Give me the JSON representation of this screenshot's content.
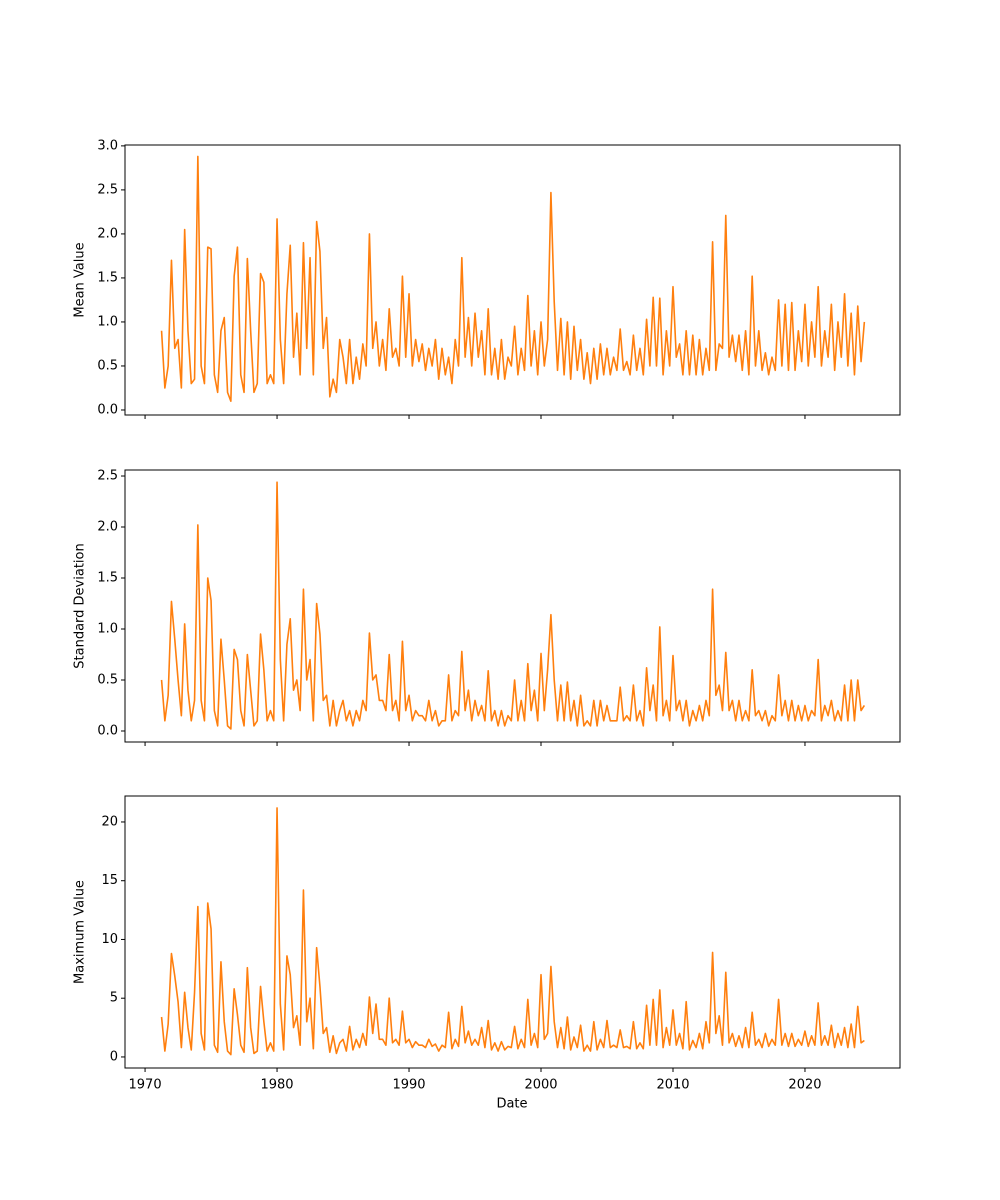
{
  "chart_data": {
    "type": "line",
    "xlabel": "Date",
    "color": "#ff7f0e",
    "xlim": [
      1968.48,
      2027.2
    ],
    "xticks": [
      1970,
      1980,
      1990,
      2000,
      2010,
      2020
    ],
    "x": [
      1971.25,
      1971.5,
      1971.75,
      1972,
      1972.25,
      1972.5,
      1972.75,
      1973,
      1973.25,
      1973.5,
      1973.75,
      1974,
      1974.25,
      1974.5,
      1974.75,
      1975,
      1975.25,
      1975.5,
      1975.75,
      1976,
      1976.25,
      1976.5,
      1976.75,
      1977,
      1977.25,
      1977.5,
      1977.75,
      1978,
      1978.25,
      1978.5,
      1978.75,
      1979,
      1979.25,
      1979.5,
      1979.75,
      1980,
      1980.25,
      1980.5,
      1980.75,
      1981,
      1981.25,
      1981.5,
      1981.75,
      1982,
      1982.25,
      1982.5,
      1982.75,
      1983,
      1983.25,
      1983.5,
      1983.75,
      1984,
      1984.25,
      1984.5,
      1984.75,
      1985,
      1985.25,
      1985.5,
      1985.75,
      1986,
      1986.25,
      1986.5,
      1986.75,
      1987,
      1987.25,
      1987.5,
      1987.75,
      1988,
      1988.25,
      1988.5,
      1988.75,
      1989,
      1989.25,
      1989.5,
      1989.75,
      1990,
      1990.25,
      1990.5,
      1990.75,
      1991,
      1991.25,
      1991.5,
      1991.75,
      1992,
      1992.25,
      1992.5,
      1992.75,
      1993,
      1993.25,
      1993.5,
      1993.75,
      1994,
      1994.25,
      1994.5,
      1994.75,
      1995,
      1995.25,
      1995.5,
      1995.75,
      1996,
      1996.25,
      1996.5,
      1996.75,
      1997,
      1997.25,
      1997.5,
      1997.75,
      1998,
      1998.25,
      1998.5,
      1998.75,
      1999,
      1999.25,
      1999.5,
      1999.75,
      2000,
      2000.25,
      2000.5,
      2000.75,
      2001,
      2001.25,
      2001.5,
      2001.75,
      2002,
      2002.25,
      2002.5,
      2002.75,
      2003,
      2003.25,
      2003.5,
      2003.75,
      2004,
      2004.25,
      2004.5,
      2004.75,
      2005,
      2005.25,
      2005.5,
      2005.75,
      2006,
      2006.25,
      2006.5,
      2006.75,
      2007,
      2007.25,
      2007.5,
      2007.75,
      2008,
      2008.25,
      2008.5,
      2008.75,
      2009,
      2009.25,
      2009.5,
      2009.75,
      2010,
      2010.25,
      2010.5,
      2010.75,
      2011,
      2011.25,
      2011.5,
      2011.75,
      2012,
      2012.25,
      2012.5,
      2012.75,
      2013,
      2013.25,
      2013.5,
      2013.75,
      2014,
      2014.25,
      2014.5,
      2014.75,
      2015,
      2015.25,
      2015.5,
      2015.75,
      2016,
      2016.25,
      2016.5,
      2016.75,
      2017,
      2017.25,
      2017.5,
      2017.75,
      2018,
      2018.25,
      2018.5,
      2018.75,
      2019,
      2019.25,
      2019.5,
      2019.75,
      2020,
      2020.25,
      2020.5,
      2020.75,
      2021,
      2021.25,
      2021.5,
      2021.75,
      2022,
      2022.25,
      2022.5,
      2022.75,
      2023,
      2023.25,
      2023.5,
      2023.75,
      2024,
      2024.25,
      2024.5
    ],
    "panels": [
      {
        "ylabel": "Mean Value",
        "ylim": [
          -0.057,
          3.01
        ],
        "yticks": [
          {
            "value": 0,
            "label": "0.0"
          },
          0.5,
          {
            "value": 1,
            "label": "1.0"
          },
          1.5,
          {
            "value": 2,
            "label": "2.0"
          },
          2.5,
          {
            "value": 3,
            "label": "3.0"
          }
        ],
        "values": [
          0.9,
          0.25,
          0.5,
          1.7,
          0.7,
          0.8,
          0.25,
          2.05,
          0.9,
          0.3,
          0.35,
          2.88,
          0.5,
          0.3,
          1.85,
          1.83,
          0.4,
          0.2,
          0.9,
          1.05,
          0.2,
          0.1,
          1.52,
          1.85,
          0.4,
          0.2,
          1.72,
          0.9,
          0.2,
          0.3,
          1.55,
          1.45,
          0.3,
          0.4,
          0.3,
          2.17,
          0.8,
          0.3,
          1.32,
          1.87,
          0.6,
          1.1,
          0.4,
          1.9,
          0.7,
          1.73,
          0.4,
          2.14,
          1.8,
          0.7,
          1.05,
          0.15,
          0.35,
          0.2,
          0.8,
          0.6,
          0.3,
          0.8,
          0.3,
          0.6,
          0.35,
          0.75,
          0.5,
          2.0,
          0.7,
          1.0,
          0.5,
          0.8,
          0.45,
          1.15,
          0.6,
          0.7,
          0.5,
          1.52,
          0.6,
          1.32,
          0.5,
          0.8,
          0.55,
          0.75,
          0.45,
          0.7,
          0.5,
          0.8,
          0.35,
          0.7,
          0.4,
          0.6,
          0.3,
          0.8,
          0.5,
          1.73,
          0.6,
          1.05,
          0.5,
          1.1,
          0.6,
          0.9,
          0.4,
          1.15,
          0.4,
          0.7,
          0.35,
          0.8,
          0.35,
          0.6,
          0.5,
          0.95,
          0.4,
          0.7,
          0.45,
          1.3,
          0.5,
          0.9,
          0.4,
          1.0,
          0.5,
          0.8,
          2.47,
          1.23,
          0.45,
          1.04,
          0.4,
          1.0,
          0.35,
          0.95,
          0.45,
          0.8,
          0.35,
          0.65,
          0.3,
          0.7,
          0.35,
          0.75,
          0.4,
          0.7,
          0.4,
          0.6,
          0.45,
          0.92,
          0.45,
          0.55,
          0.4,
          0.85,
          0.45,
          0.7,
          0.4,
          1.03,
          0.5,
          1.28,
          0.5,
          1.27,
          0.4,
          0.9,
          0.5,
          1.4,
          0.6,
          0.75,
          0.4,
          0.9,
          0.4,
          0.85,
          0.4,
          0.8,
          0.4,
          0.7,
          0.45,
          1.91,
          0.45,
          0.75,
          0.7,
          2.21,
          0.6,
          0.85,
          0.55,
          0.85,
          0.45,
          0.9,
          0.4,
          1.52,
          0.5,
          0.9,
          0.45,
          0.65,
          0.4,
          0.6,
          0.45,
          1.25,
          0.5,
          1.2,
          0.45,
          1.22,
          0.45,
          0.9,
          0.55,
          1.2,
          0.5,
          1.0,
          0.6,
          1.4,
          0.5,
          0.9,
          0.6,
          1.2,
          0.45,
          1.0,
          0.6,
          1.32,
          0.5,
          1.1,
          0.4,
          1.18,
          0.55,
          1.0
        ]
      },
      {
        "ylabel": "Standard Deviation",
        "ylim": [
          -0.108,
          2.559
        ],
        "yticks": [
          {
            "value": 0,
            "label": "0.0"
          },
          0.5,
          {
            "value": 1,
            "label": "1.0"
          },
          1.5,
          {
            "value": 2,
            "label": "2.0"
          },
          2.5
        ],
        "values": [
          0.5,
          0.1,
          0.35,
          1.27,
          0.9,
          0.5,
          0.15,
          1.05,
          0.4,
          0.1,
          0.3,
          2.02,
          0.3,
          0.1,
          1.5,
          1.28,
          0.2,
          0.05,
          0.9,
          0.5,
          0.05,
          0.02,
          0.8,
          0.7,
          0.2,
          0.05,
          0.75,
          0.4,
          0.05,
          0.1,
          0.95,
          0.6,
          0.1,
          0.2,
          0.1,
          2.44,
          0.7,
          0.1,
          0.85,
          1.1,
          0.4,
          0.5,
          0.2,
          1.39,
          0.5,
          0.7,
          0.1,
          1.25,
          0.95,
          0.3,
          0.35,
          0.05,
          0.3,
          0.05,
          0.2,
          0.3,
          0.1,
          0.2,
          0.05,
          0.2,
          0.1,
          0.3,
          0.2,
          0.96,
          0.5,
          0.55,
          0.3,
          0.3,
          0.2,
          0.75,
          0.2,
          0.3,
          0.1,
          0.88,
          0.2,
          0.35,
          0.1,
          0.2,
          0.15,
          0.15,
          0.1,
          0.3,
          0.1,
          0.2,
          0.05,
          0.1,
          0.1,
          0.55,
          0.1,
          0.2,
          0.15,
          0.78,
          0.2,
          0.4,
          0.1,
          0.3,
          0.15,
          0.25,
          0.1,
          0.59,
          0.1,
          0.2,
          0.05,
          0.2,
          0.05,
          0.15,
          0.1,
          0.5,
          0.1,
          0.3,
          0.1,
          0.66,
          0.2,
          0.4,
          0.1,
          0.76,
          0.2,
          0.6,
          1.14,
          0.5,
          0.1,
          0.45,
          0.1,
          0.48,
          0.1,
          0.3,
          0.05,
          0.35,
          0.05,
          0.1,
          0.05,
          0.3,
          0.05,
          0.3,
          0.1,
          0.25,
          0.1,
          0.1,
          0.1,
          0.43,
          0.1,
          0.15,
          0.1,
          0.45,
          0.1,
          0.2,
          0.05,
          0.62,
          0.2,
          0.45,
          0.1,
          1.02,
          0.15,
          0.3,
          0.1,
          0.74,
          0.2,
          0.3,
          0.1,
          0.3,
          0.05,
          0.2,
          0.1,
          0.25,
          0.1,
          0.3,
          0.15,
          1.39,
          0.35,
          0.45,
          0.2,
          0.77,
          0.2,
          0.3,
          0.1,
          0.3,
          0.1,
          0.2,
          0.1,
          0.6,
          0.15,
          0.2,
          0.1,
          0.2,
          0.05,
          0.15,
          0.1,
          0.55,
          0.15,
          0.3,
          0.1,
          0.3,
          0.1,
          0.25,
          0.1,
          0.25,
          0.1,
          0.2,
          0.15,
          0.7,
          0.1,
          0.25,
          0.15,
          0.3,
          0.1,
          0.2,
          0.1,
          0.45,
          0.1,
          0.5,
          0.1,
          0.5,
          0.2,
          0.25
        ]
      },
      {
        "ylabel": "Maximum Value",
        "ylim": [
          -0.94,
          22.21
        ],
        "yticks": [
          0,
          5,
          10,
          15,
          20
        ],
        "values": [
          3.4,
          0.5,
          2.8,
          8.8,
          6.9,
          4.7,
          0.8,
          5.5,
          2.5,
          0.6,
          5.5,
          12.8,
          2.0,
          0.6,
          13.1,
          10.9,
          1.0,
          0.4,
          8.1,
          3.0,
          0.5,
          0.2,
          5.8,
          3.6,
          1.0,
          0.4,
          7.6,
          2.5,
          0.3,
          0.5,
          6.0,
          3.0,
          0.5,
          1.2,
          0.5,
          21.2,
          4.5,
          0.6,
          8.6,
          7.0,
          2.5,
          3.5,
          1.0,
          14.2,
          3.0,
          5.0,
          0.7,
          9.3,
          6.0,
          2.0,
          2.5,
          0.4,
          1.8,
          0.3,
          1.2,
          1.5,
          0.5,
          2.6,
          0.6,
          1.5,
          0.8,
          2.0,
          1.0,
          5.1,
          2.0,
          4.5,
          1.5,
          1.5,
          1.0,
          5.0,
          1.2,
          1.5,
          1.0,
          3.9,
          1.2,
          1.5,
          0.8,
          1.3,
          1.0,
          1.0,
          0.8,
          1.5,
          0.9,
          1.1,
          0.5,
          1.0,
          0.8,
          3.8,
          0.7,
          1.5,
          0.9,
          4.3,
          1.2,
          2.2,
          1.0,
          1.5,
          1.0,
          2.5,
          0.8,
          3.1,
          0.6,
          1.2,
          0.5,
          1.3,
          0.6,
          0.9,
          0.8,
          2.6,
          0.7,
          1.5,
          0.8,
          4.9,
          1.0,
          2.0,
          0.8,
          7.0,
          1.5,
          2.0,
          7.7,
          3.0,
          0.8,
          2.5,
          0.7,
          3.4,
          0.6,
          1.7,
          0.8,
          2.7,
          0.5,
          1.0,
          0.5,
          3.0,
          0.6,
          1.5,
          0.8,
          3.1,
          0.8,
          1.0,
          0.8,
          2.3,
          0.8,
          0.9,
          0.7,
          3.0,
          0.7,
          1.2,
          0.7,
          4.4,
          1.0,
          4.9,
          1.0,
          5.7,
          0.8,
          2.5,
          1.0,
          4.0,
          1.0,
          2.0,
          0.7,
          4.7,
          0.6,
          1.4,
          0.8,
          2.0,
          0.7,
          3.0,
          1.2,
          8.9,
          2.0,
          3.5,
          1.0,
          7.2,
          1.2,
          2.0,
          0.9,
          1.8,
          0.8,
          2.5,
          0.8,
          3.8,
          1.0,
          1.5,
          0.8,
          2.0,
          0.9,
          1.5,
          1.0,
          4.9,
          1.0,
          2.0,
          0.9,
          2.0,
          0.9,
          1.5,
          1.0,
          2.2,
          0.9,
          1.8,
          1.0,
          4.6,
          1.0,
          1.8,
          1.0,
          2.7,
          0.8,
          2.0,
          1.0,
          2.5,
          0.8,
          2.8,
          0.8,
          4.3,
          1.2,
          1.4
        ]
      }
    ]
  }
}
